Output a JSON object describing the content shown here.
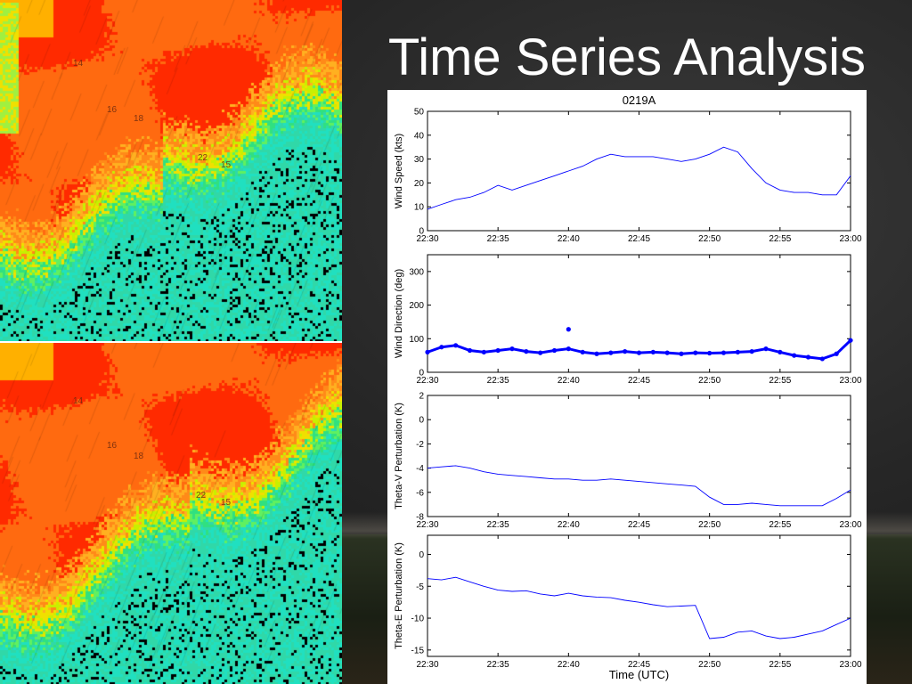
{
  "slide": {
    "title": "Time Series Analysis"
  },
  "radar": {
    "top_labels": [
      "14",
      "16",
      "18",
      "22",
      "15"
    ],
    "bottom_labels": [
      "14",
      "16",
      "18",
      "22",
      "15"
    ]
  },
  "chart_data": {
    "type": "line",
    "title": "0219A",
    "xlabel": "Time (UTC)",
    "x_ticks": [
      "22:30",
      "22:35",
      "22:40",
      "22:45",
      "22:50",
      "22:55",
      "23:00"
    ],
    "color": "#0000ff",
    "panels": [
      {
        "ylabel": "Wind Speed (kts)",
        "ylim": [
          0,
          50
        ],
        "y_ticks": [
          0,
          10,
          20,
          30,
          40,
          50
        ],
        "style": "line",
        "series": [
          {
            "x": [
              "22:30",
              "22:31",
              "22:32",
              "22:33",
              "22:34",
              "22:35",
              "22:36",
              "22:37",
              "22:38",
              "22:39",
              "22:40",
              "22:41",
              "22:42",
              "22:43",
              "22:44",
              "22:45",
              "22:46",
              "22:47",
              "22:48",
              "22:49",
              "22:50",
              "22:51",
              "22:52",
              "22:53",
              "22:54",
              "22:55",
              "22:56",
              "22:57",
              "22:58",
              "22:59",
              "23:00"
            ],
            "y": [
              9,
              11,
              13,
              14,
              16,
              19,
              17,
              19,
              21,
              23,
              25,
              27,
              30,
              32,
              31,
              31,
              31,
              30,
              29,
              30,
              32,
              35,
              33,
              26,
              20,
              17,
              16,
              16,
              15,
              15,
              23
            ]
          }
        ]
      },
      {
        "ylabel": "Wind Direction (deg)",
        "ylim": [
          0,
          350
        ],
        "y_ticks": [
          0,
          100,
          200,
          300
        ],
        "style": "markers",
        "series": [
          {
            "x": [
              "22:30",
              "22:31",
              "22:32",
              "22:33",
              "22:34",
              "22:35",
              "22:36",
              "22:37",
              "22:38",
              "22:39",
              "22:40",
              "22:41",
              "22:42",
              "22:43",
              "22:44",
              "22:45",
              "22:46",
              "22:47",
              "22:48",
              "22:49",
              "22:50",
              "22:51",
              "22:52",
              "22:53",
              "22:54",
              "22:55",
              "22:56",
              "22:57",
              "22:58",
              "22:59",
              "23:00"
            ],
            "y": [
              60,
              75,
              80,
              65,
              60,
              65,
              70,
              62,
              58,
              65,
              70,
              60,
              55,
              58,
              62,
              58,
              60,
              58,
              55,
              58,
              57,
              58,
              60,
              62,
              70,
              60,
              50,
              45,
              40,
              55,
              95
            ]
          }
        ],
        "outliers": [
          {
            "x": "22:40",
            "y": 128
          }
        ]
      },
      {
        "ylabel": "Theta-V Perturbation (K)",
        "ylim": [
          -8,
          2
        ],
        "y_ticks": [
          -8,
          -6,
          -4,
          -2,
          0,
          2
        ],
        "style": "line",
        "series": [
          {
            "x": [
              "22:30",
              "22:31",
              "22:32",
              "22:33",
              "22:34",
              "22:35",
              "22:36",
              "22:37",
              "22:38",
              "22:39",
              "22:40",
              "22:41",
              "22:42",
              "22:43",
              "22:44",
              "22:45",
              "22:46",
              "22:47",
              "22:48",
              "22:49",
              "22:50",
              "22:51",
              "22:52",
              "22:53",
              "22:54",
              "22:55",
              "22:56",
              "22:57",
              "22:58",
              "22:59",
              "23:00"
            ],
            "y": [
              -4.0,
              -3.9,
              -3.8,
              -4.0,
              -4.3,
              -4.5,
              -4.6,
              -4.7,
              -4.8,
              -4.9,
              -4.9,
              -5.0,
              -5.0,
              -4.9,
              -5.0,
              -5.1,
              -5.2,
              -5.3,
              -5.4,
              -5.5,
              -6.4,
              -7.0,
              -7.0,
              -6.9,
              -7.0,
              -7.1,
              -7.1,
              -7.1,
              -7.1,
              -6.5,
              -5.8
            ]
          }
        ]
      },
      {
        "ylabel": "Theta-E Perturbation (K)",
        "ylim": [
          -16,
          3
        ],
        "y_ticks": [
          -15,
          -10,
          -5,
          0
        ],
        "style": "line",
        "series": [
          {
            "x": [
              "22:30",
              "22:31",
              "22:32",
              "22:33",
              "22:34",
              "22:35",
              "22:36",
              "22:37",
              "22:38",
              "22:39",
              "22:40",
              "22:41",
              "22:42",
              "22:43",
              "22:44",
              "22:45",
              "22:46",
              "22:47",
              "22:48",
              "22:49",
              "22:50",
              "22:51",
              "22:52",
              "22:53",
              "22:54",
              "22:55",
              "22:56",
              "22:57",
              "22:58",
              "22:59",
              "23:00"
            ],
            "y": [
              -3.8,
              -4.0,
              -3.6,
              -4.3,
              -5.0,
              -5.6,
              -5.8,
              -5.7,
              -6.2,
              -6.5,
              -6.1,
              -6.5,
              -6.7,
              -6.8,
              -7.2,
              -7.5,
              -7.9,
              -8.2,
              -8.1,
              -8.0,
              -13.2,
              -13.0,
              -12.2,
              -12.0,
              -12.8,
              -13.2,
              -13.0,
              -12.5,
              -12.0,
              -11.0,
              -10.0
            ]
          }
        ]
      }
    ]
  }
}
